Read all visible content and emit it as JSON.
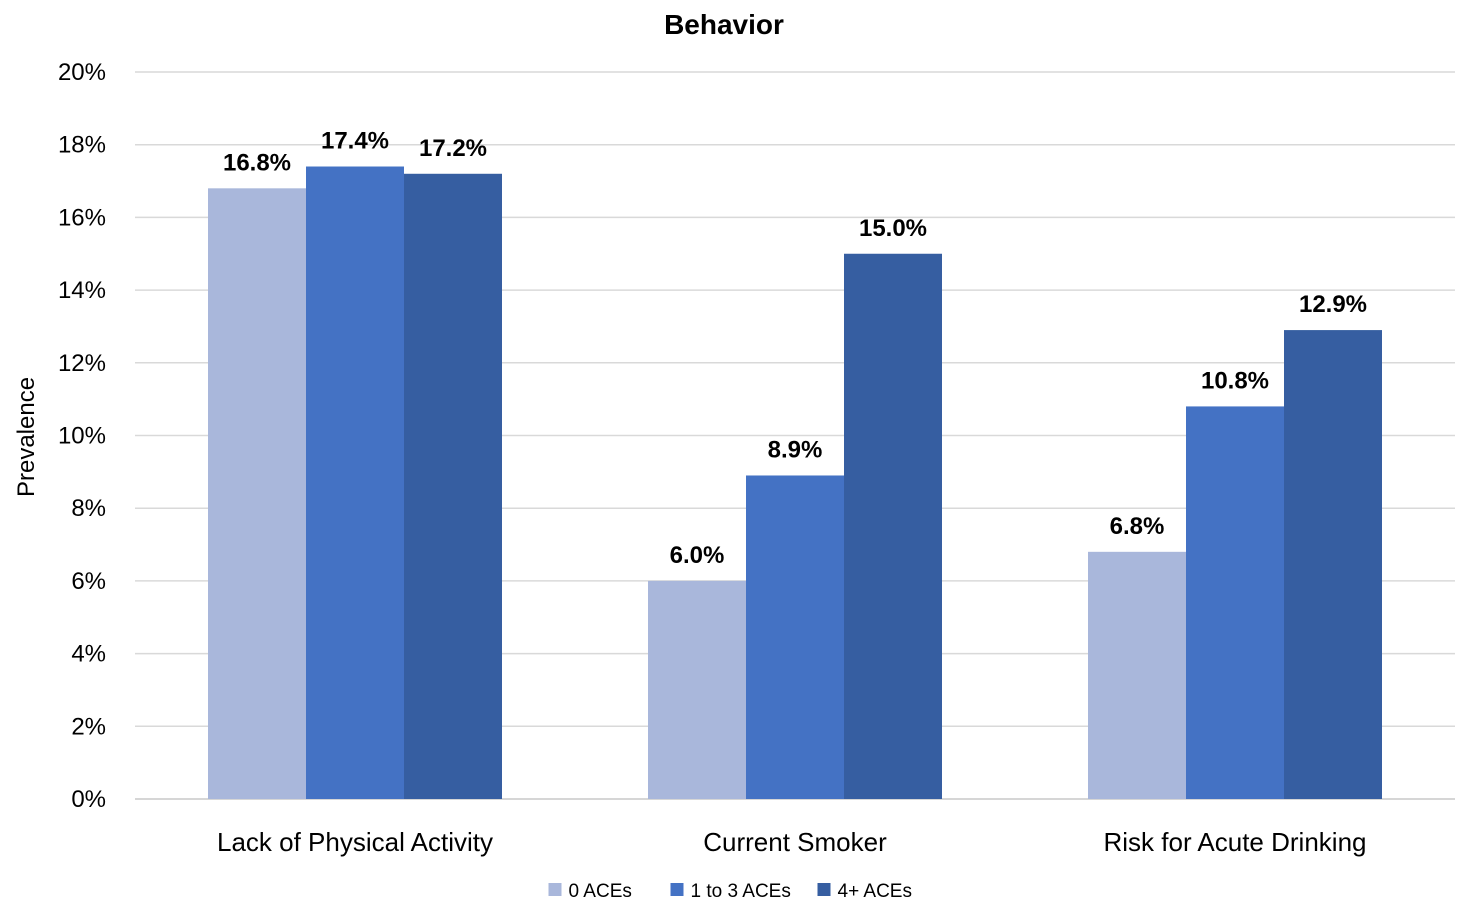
{
  "chart_data": {
    "type": "bar",
    "title": "Behavior",
    "xlabel": "",
    "ylabel": "Prevalence",
    "ylim": [
      0,
      20
    ],
    "yticks": [
      "0%",
      "2%",
      "4%",
      "6%",
      "8%",
      "10%",
      "12%",
      "14%",
      "16%",
      "18%",
      "20%"
    ],
    "categories": [
      "Lack of Physical Activity",
      "Current Smoker",
      "Risk for Acute Drinking"
    ],
    "series": [
      {
        "name": "0 ACEs",
        "color": "#a9b7db",
        "values": [
          16.8,
          6.0,
          6.8
        ],
        "labels": [
          "16.8%",
          "6.0%",
          "6.8%"
        ]
      },
      {
        "name": "1 to 3 ACEs",
        "color": "#4472c4",
        "values": [
          17.4,
          8.9,
          10.8
        ],
        "labels": [
          "17.4%",
          "8.9%",
          "10.8%"
        ]
      },
      {
        "name": "4+ ACEs",
        "color": "#365ea1",
        "values": [
          17.2,
          15.0,
          12.9
        ],
        "labels": [
          "17.2%",
          "15.0%",
          "12.9%"
        ]
      }
    ],
    "grid": true,
    "legend": "bottom"
  }
}
